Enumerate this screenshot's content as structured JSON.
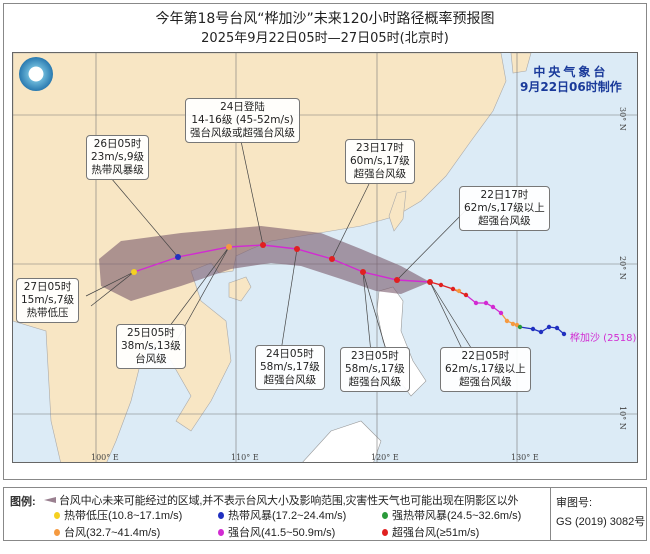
{
  "title": "今年第18号台风“桦加沙”未来120小时路径概率预报图",
  "subtitle": "2025年9月22日05时—27日05时(北京时)",
  "agency": {
    "name": "中央气象台",
    "issued": "9月22日06时制作"
  },
  "typhoon_label": "桦加沙 (2518)",
  "axes": {
    "lon": [
      "100° E",
      "110° E",
      "120° E",
      "130° E"
    ],
    "lat": [
      "30° N",
      "20° N",
      "10° N"
    ]
  },
  "colors": {
    "land": "#f8e6c4",
    "sea": "#dcebf6",
    "cone": "#8a6a7a",
    "track": "#d22bd2",
    "td": "#f5d020",
    "ts": "#2030c0",
    "sts": "#2a9a3a",
    "ty": "#f59a40",
    "sty": "#d22bd2",
    "superty": "#e02020"
  },
  "forecast_labels": [
    {
      "time": "26日05时",
      "l2": "23m/s,9级",
      "l3": "热带风暴级"
    },
    {
      "time": "24日登陆",
      "l2": "14-16级 (45-52m/s)",
      "l3": "强台风级或超强台风级"
    },
    {
      "time": "23日17时",
      "l2": "60m/s,17级",
      "l3": "超强台风级"
    },
    {
      "time": "22日17时",
      "l2": "62m/s,17级以上",
      "l3": "超强台风级"
    },
    {
      "time": "27日05时",
      "l2": "15m/s,7级",
      "l3": "热带低压"
    },
    {
      "time": "25日05时",
      "l2": "38m/s,13级",
      "l3": "台风级"
    },
    {
      "time": "24日05时",
      "l2": "58m/s,17级",
      "l3": "超强台风级"
    },
    {
      "time": "23日05时",
      "l2": "58m/s,17级",
      "l3": "超强台风级"
    },
    {
      "time": "22日05时",
      "l2": "62m/s,17级以上",
      "l3": "超强台风级"
    }
  ],
  "legend": {
    "heading": "图例:",
    "cone_desc": "台风中心未来可能经过的区域,并不表示台风大小及影响范围,灾害性天气也可能出现在阴影区以外",
    "items": [
      {
        "label": "热带低压(10.8~17.1m/s)",
        "color": "#f5d020"
      },
      {
        "label": "热带风暴(17.2~24.4m/s)",
        "color": "#2030c0"
      },
      {
        "label": "强热带风暴(24.5~32.6m/s)",
        "color": "#2a9a3a"
      },
      {
        "label": "台风(32.7~41.4m/s)",
        "color": "#f59a40"
      },
      {
        "label": "强台风(41.5~50.9m/s)",
        "color": "#d22bd2"
      },
      {
        "label": "超强台风(≥51m/s)",
        "color": "#e02020"
      }
    ],
    "approval_label": "审图号:",
    "approval_no": "GS (2019) 3082号"
  }
}
